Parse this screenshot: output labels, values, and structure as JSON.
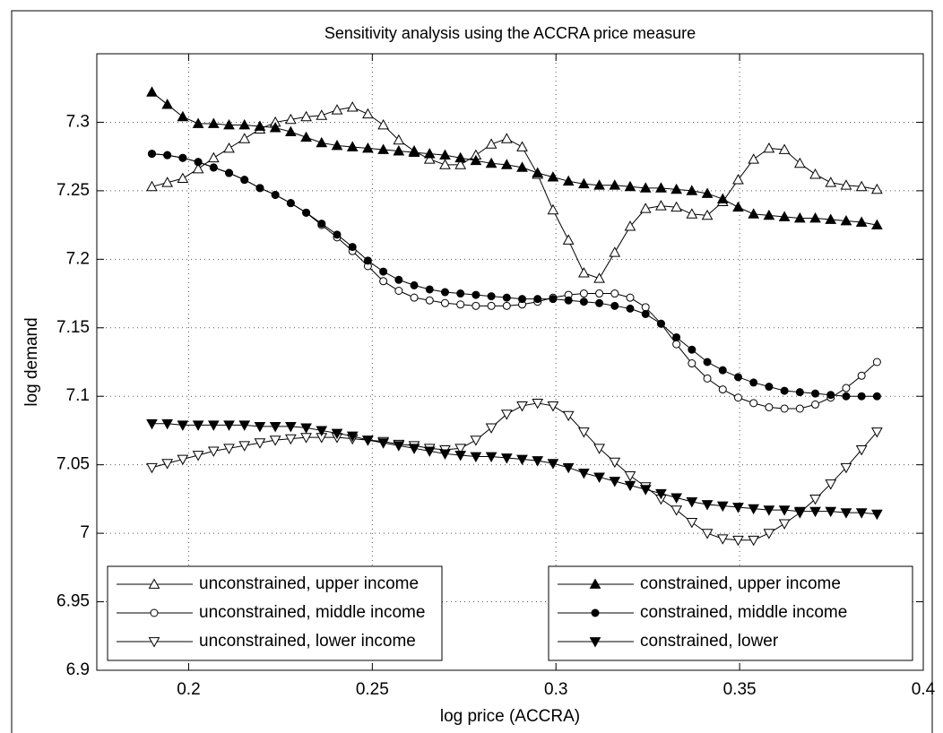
{
  "chart_data": {
    "type": "line",
    "title": "Sensitivity analysis using the ACCRA price measure",
    "xlabel": "log price (ACCRA)",
    "ylabel": "log demand",
    "xlim": [
      0.175,
      0.4
    ],
    "ylim": [
      6.9,
      7.35
    ],
    "xticks": [
      0.2,
      0.25,
      0.3,
      0.35,
      0.4
    ],
    "yticks": [
      6.9,
      6.95,
      7,
      7.05,
      7.1,
      7.15,
      7.2,
      7.25,
      7.3
    ],
    "grid": true,
    "legend_columns": 2,
    "legend_loc": "lower",
    "x": [
      0.19,
      0.1942,
      0.1984,
      0.2026,
      0.2068,
      0.211,
      0.2152,
      0.2194,
      0.2236,
      0.2278,
      0.232,
      0.2362,
      0.2404,
      0.2446,
      0.2488,
      0.253,
      0.2572,
      0.2614,
      0.2656,
      0.2698,
      0.274,
      0.2782,
      0.2824,
      0.2866,
      0.2908,
      0.295,
      0.2992,
      0.3034,
      0.3076,
      0.3118,
      0.316,
      0.3202,
      0.3244,
      0.3286,
      0.3328,
      0.337,
      0.3412,
      0.3454,
      0.3496,
      0.3538,
      0.358,
      0.3622,
      0.3664,
      0.3706,
      0.3748,
      0.379,
      0.3832,
      0.3874
    ],
    "series": [
      {
        "name": "unconstrained, upper income",
        "color": "#000000",
        "marker": "triangle-up",
        "filled": false,
        "values": [
          7.253,
          7.256,
          7.259,
          7.266,
          7.274,
          7.281,
          7.288,
          7.295,
          7.3,
          7.302,
          7.304,
          7.305,
          7.309,
          7.311,
          7.306,
          7.298,
          7.287,
          7.279,
          7.273,
          7.269,
          7.269,
          7.276,
          7.284,
          7.288,
          7.282,
          7.262,
          7.236,
          7.214,
          7.19,
          7.186,
          7.205,
          7.224,
          7.237,
          7.239,
          7.238,
          7.233,
          7.232,
          7.242,
          7.258,
          7.273,
          7.281,
          7.28,
          7.27,
          7.262,
          7.256,
          7.254,
          7.253,
          7.251
        ]
      },
      {
        "name": "unconstrained, middle income",
        "color": "#000000",
        "marker": "circle",
        "filled": false,
        "values": [
          7.277,
          7.276,
          7.274,
          7.271,
          7.267,
          7.263,
          7.258,
          7.252,
          7.247,
          7.241,
          7.234,
          7.225,
          7.216,
          7.206,
          7.195,
          7.184,
          7.177,
          7.172,
          7.17,
          7.168,
          7.167,
          7.166,
          7.166,
          7.166,
          7.167,
          7.169,
          7.172,
          7.174,
          7.175,
          7.175,
          7.175,
          7.172,
          7.165,
          7.153,
          7.138,
          7.124,
          7.113,
          7.105,
          7.099,
          7.095,
          7.092,
          7.091,
          7.091,
          7.094,
          7.099,
          7.106,
          7.115,
          7.125
        ]
      },
      {
        "name": "unconstrained, lower income",
        "color": "#000000",
        "marker": "triangle-down",
        "filled": false,
        "values": [
          7.048,
          7.051,
          7.054,
          7.057,
          7.06,
          7.062,
          7.064,
          7.066,
          7.068,
          7.069,
          7.07,
          7.07,
          7.07,
          7.069,
          7.068,
          7.067,
          7.065,
          7.064,
          7.062,
          7.061,
          7.062,
          7.068,
          7.077,
          7.087,
          7.093,
          7.095,
          7.093,
          7.086,
          7.074,
          7.062,
          7.052,
          7.042,
          7.034,
          7.025,
          7.017,
          7.008,
          7,
          6.996,
          6.995,
          6.995,
          7,
          7.007,
          7.015,
          7.025,
          7.036,
          7.048,
          7.061,
          7.074
        ]
      },
      {
        "name": "constrained, upper income",
        "color": "#000000",
        "marker": "triangle-up",
        "filled": true,
        "values": [
          7.322,
          7.313,
          7.304,
          7.299,
          7.299,
          7.298,
          7.298,
          7.297,
          7.296,
          7.293,
          7.289,
          7.285,
          7.283,
          7.282,
          7.281,
          7.28,
          7.279,
          7.278,
          7.277,
          7.276,
          7.274,
          7.272,
          7.27,
          7.269,
          7.267,
          7.263,
          7.26,
          7.257,
          7.255,
          7.254,
          7.254,
          7.253,
          7.252,
          7.252,
          7.251,
          7.25,
          7.248,
          7.244,
          7.238,
          7.233,
          7.232,
          7.231,
          7.23,
          7.23,
          7.229,
          7.228,
          7.227,
          7.225
        ]
      },
      {
        "name": "constrained, middle income",
        "color": "#000000",
        "marker": "circle",
        "filled": true,
        "values": [
          7.277,
          7.276,
          7.274,
          7.271,
          7.267,
          7.263,
          7.258,
          7.252,
          7.247,
          7.241,
          7.234,
          7.226,
          7.218,
          7.209,
          7.199,
          7.191,
          7.185,
          7.181,
          7.178,
          7.176,
          7.175,
          7.174,
          7.173,
          7.172,
          7.171,
          7.171,
          7.171,
          7.17,
          7.169,
          7.168,
          7.166,
          7.164,
          7.16,
          7.153,
          7.143,
          7.134,
          7.125,
          7.119,
          7.114,
          7.11,
          7.107,
          7.104,
          7.103,
          7.102,
          7.101,
          7.1,
          7.1,
          7.1
        ]
      },
      {
        "name": "constrained, lower",
        "color": "#000000",
        "marker": "triangle-down",
        "filled": true,
        "values": [
          7.08,
          7.08,
          7.079,
          7.079,
          7.079,
          7.079,
          7.079,
          7.078,
          7.078,
          7.078,
          7.077,
          7.075,
          7.073,
          7.071,
          7.068,
          7.066,
          7.064,
          7.062,
          7.06,
          7.058,
          7.057,
          7.056,
          7.056,
          7.055,
          7.054,
          7.053,
          7.051,
          7.048,
          7.044,
          7.041,
          7.038,
          7.035,
          7.032,
          7.029,
          7.026,
          7.023,
          7.021,
          7.02,
          7.019,
          7.018,
          7.017,
          7.017,
          7.016,
          7.016,
          7.016,
          7.015,
          7.015,
          7.014
        ]
      }
    ]
  }
}
